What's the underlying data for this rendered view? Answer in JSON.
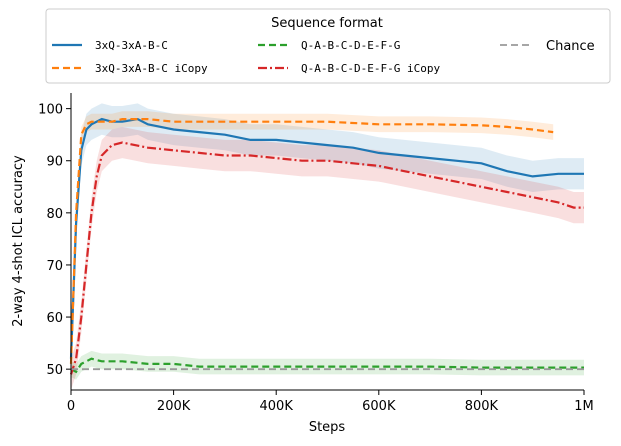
{
  "chart_data": {
    "type": "line",
    "title": "",
    "xlabel": "Steps",
    "ylabel": "2-way 4-shot ICL accuracy",
    "xlim": [
      0,
      1000000
    ],
    "ylim": [
      46,
      103
    ],
    "x_ticks": [
      0,
      200000,
      400000,
      600000,
      800000,
      1000000
    ],
    "x_tick_labels": [
      "0",
      "200K",
      "400K",
      "600K",
      "800K",
      "1M"
    ],
    "y_ticks": [
      50,
      60,
      70,
      80,
      90,
      100
    ],
    "y_tick_labels": [
      "50",
      "60",
      "70",
      "80",
      "90",
      "100"
    ],
    "legend": {
      "title": "Sequence format",
      "placement": "top",
      "entries": [
        {
          "label": "3xQ-3xA-B-C",
          "series": "s1"
        },
        {
          "label": "3xQ-3xA-B-C iCopy",
          "series": "s2"
        },
        {
          "label": "Q-A-B-C-D-E-F-G",
          "series": "s3"
        },
        {
          "label": "Q-A-B-C-D-E-F-G iCopy",
          "series": "s4"
        },
        {
          "label": "Chance",
          "series": "chance"
        }
      ]
    },
    "series": [
      {
        "id": "s1",
        "name": "3xQ-3xA-B-C",
        "color": "#1f77b4",
        "style": "solid",
        "band": 3,
        "x": [
          0,
          10000,
          20000,
          30000,
          40000,
          60000,
          80000,
          100000,
          130000,
          150000,
          200000,
          250000,
          300000,
          350000,
          400000,
          450000,
          500000,
          550000,
          600000,
          650000,
          700000,
          750000,
          800000,
          850000,
          900000,
          950000,
          1000000
        ],
        "y": [
          52,
          78,
          92,
          96,
          97,
          98,
          97.5,
          97.5,
          98,
          97,
          96,
          95.5,
          95,
          94,
          94,
          93.5,
          93,
          92.5,
          91.5,
          91,
          90.5,
          90,
          89.5,
          88,
          87,
          87.5,
          87.5
        ]
      },
      {
        "id": "s2",
        "name": "3xQ-3xA-B-C iCopy",
        "color": "#ff7f0e",
        "style": "dashed",
        "band": 1.5,
        "x": [
          0,
          10000,
          20000,
          30000,
          40000,
          60000,
          80000,
          100000,
          150000,
          200000,
          300000,
          400000,
          500000,
          600000,
          700000,
          800000,
          850000,
          900000,
          940000
        ],
        "y": [
          51,
          80,
          95,
          97,
          97.5,
          97.5,
          97.5,
          98,
          98,
          97.5,
          97.5,
          97.5,
          97.5,
          97,
          97,
          96.8,
          96.5,
          96,
          95.5
        ]
      },
      {
        "id": "s3",
        "name": "Q-A-B-C-D-E-F-G",
        "color": "#2ca02c",
        "style": "dashed",
        "band": 1.5,
        "x": [
          0,
          10000,
          20000,
          40000,
          60000,
          100000,
          150000,
          200000,
          250000,
          300000,
          400000,
          500000,
          600000,
          700000,
          800000,
          900000,
          1000000
        ],
        "y": [
          50,
          49.5,
          51,
          52,
          51.5,
          51.5,
          51,
          51,
          50.5,
          50.5,
          50.5,
          50.5,
          50.5,
          50.5,
          50.3,
          50.3,
          50.3
        ]
      },
      {
        "id": "s4",
        "name": "Q-A-B-C-D-E-F-G iCopy",
        "color": "#d62728",
        "style": "dashdot",
        "band": 3,
        "x": [
          0,
          10000,
          20000,
          30000,
          40000,
          50000,
          60000,
          80000,
          100000,
          150000,
          200000,
          250000,
          300000,
          350000,
          400000,
          450000,
          500000,
          550000,
          600000,
          650000,
          700000,
          750000,
          800000,
          850000,
          900000,
          950000,
          980000,
          1000000
        ],
        "y": [
          49,
          52,
          60,
          70,
          80,
          87,
          91,
          93,
          93.5,
          92.5,
          92,
          91.5,
          91,
          91,
          90.5,
          90,
          90,
          89.5,
          89,
          88,
          87,
          86,
          85,
          84,
          83,
          82,
          81,
          81
        ]
      },
      {
        "id": "chance",
        "name": "Chance",
        "color": "#999999",
        "style": "dashed",
        "band": 0,
        "x": [
          0,
          1000000
        ],
        "y": [
          50,
          50
        ]
      }
    ]
  }
}
